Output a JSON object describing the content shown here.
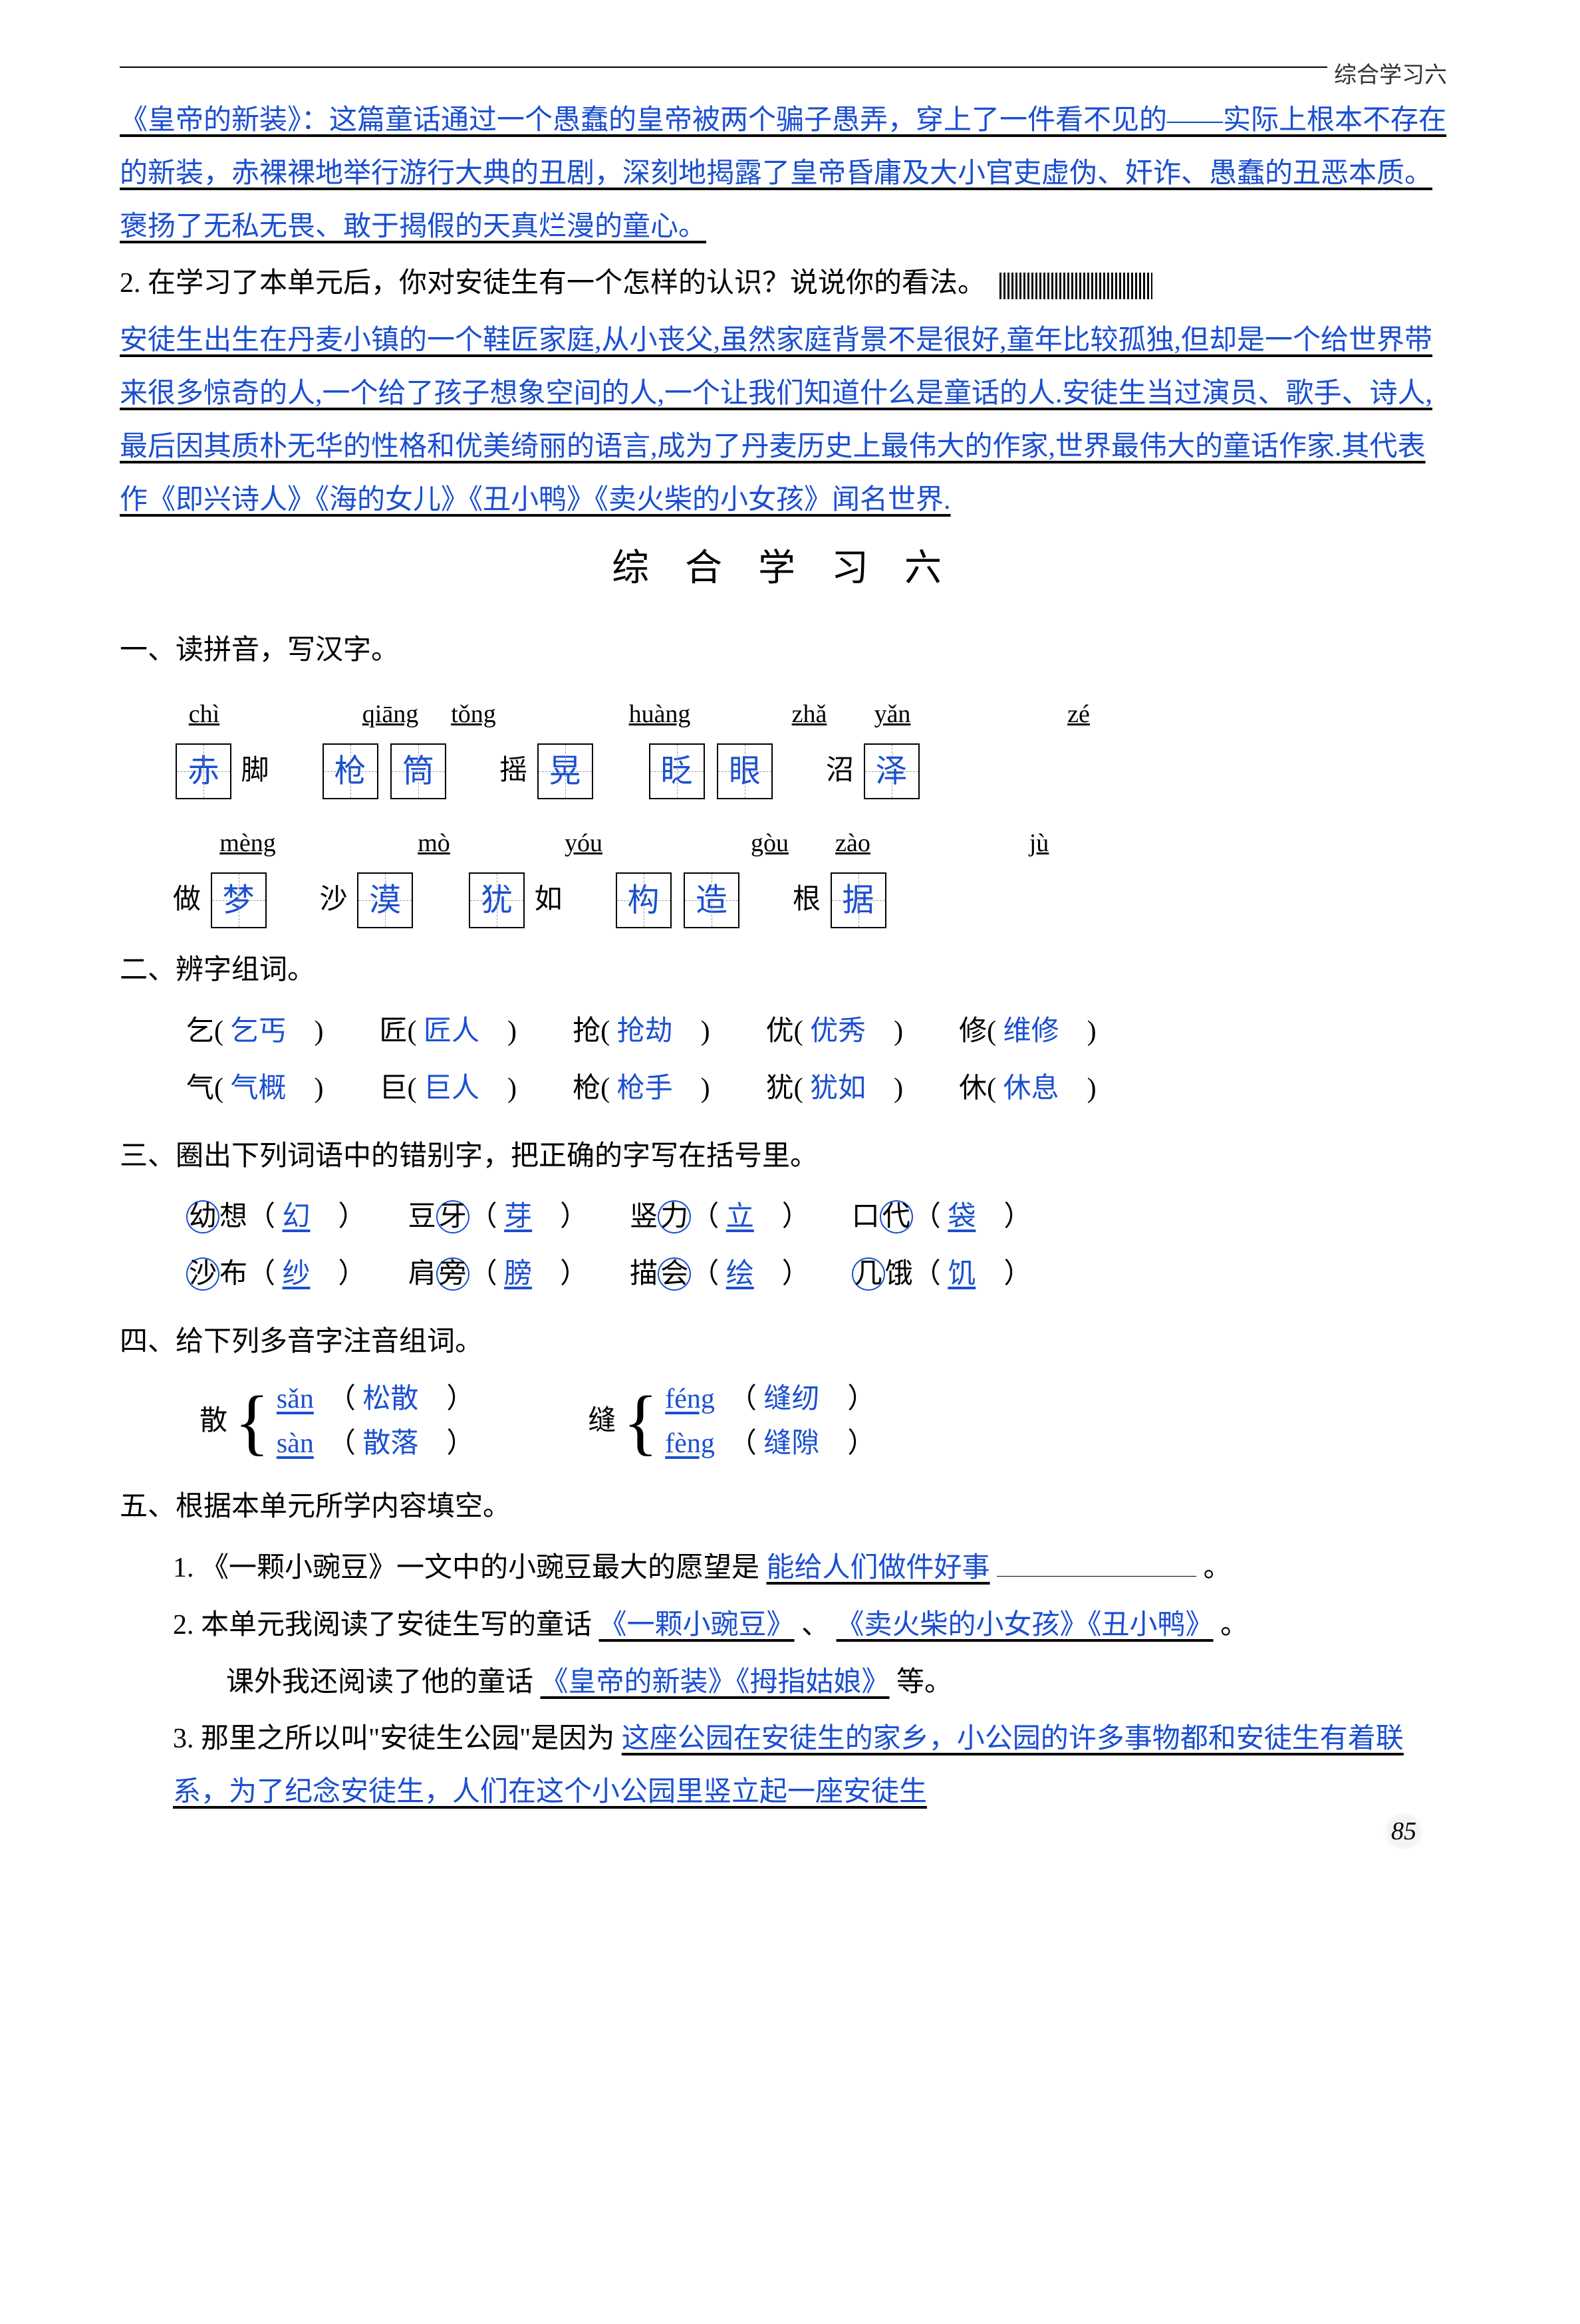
{
  "header": {
    "label": "综合学习六"
  },
  "intro": {
    "answer1": "《皇帝的新装》：这篇童话通过一个愚蠢的皇帝被两个骗子愚弄，穿上了一件看不见的——实际上根本不存在的新装，赤裸裸地举行游行大典的丑剧，深刻地揭露了皇帝昏庸及大小官吏虚伪、奸诈、愚蠢的丑恶本质。褒扬了无私无畏、敢于揭假的天真烂漫的童心。",
    "q2_prefix": "2. 在学习了本单元后，你对安徒生有一个怎样的认识？说说你的看法。",
    "answer2": "安徒生出生在丹麦小镇的一个鞋匠家庭,从小丧父,虽然家庭背景不是很好,童年比较孤独,但却是一个给世界带来很多惊奇的人,一个给了孩子想象空间的人,一个让我们知道什么是童话的人.安徒生当过演员、歌手、诗人,最后因其质朴无华的性格和优美绮丽的语言,成为了丹麦历史上最伟大的作家,世界最伟大的童话作家.其代表作《即兴诗人》《海的女儿》《丑小鸭》《卖火柴的小女孩》闻名世界."
  },
  "title": "综 合 学 习 六",
  "s1": {
    "head": "一、读拼音，写汉字。",
    "r1": {
      "p": [
        "chì",
        "qiāng",
        "tǒng",
        "huàng",
        "zhǎ",
        "yǎn",
        "zé"
      ],
      "c": [
        "赤",
        "枪",
        "筒",
        "晃",
        "眨",
        "眼",
        "泽"
      ],
      "t": [
        "脚",
        "",
        "摇",
        "",
        "",
        "沼"
      ]
    },
    "r2": {
      "p": [
        "mèng",
        "mò",
        "yóu",
        "gòu",
        "zào",
        "jù"
      ],
      "c": [
        "梦",
        "漠",
        "犹",
        "构",
        "造",
        "据"
      ],
      "t": [
        "做",
        "沙",
        "",
        "如",
        "",
        "根",
        ""
      ]
    }
  },
  "s2": {
    "head": "二、辨字组词。",
    "row1": [
      {
        "k": "乞",
        "a": "乞丐"
      },
      {
        "k": "匠",
        "a": "匠人"
      },
      {
        "k": "抢",
        "a": "抢劫"
      },
      {
        "k": "优",
        "a": "优秀"
      },
      {
        "k": "修",
        "a": "维修"
      }
    ],
    "row2": [
      {
        "k": "气",
        "a": "气概"
      },
      {
        "k": "巨",
        "a": "巨人"
      },
      {
        "k": "枪",
        "a": "枪手"
      },
      {
        "k": "犹",
        "a": "犹如"
      },
      {
        "k": "休",
        "a": "休息"
      }
    ]
  },
  "s3": {
    "head": "三、圈出下列词语中的错别字，把正确的字写在括号里。",
    "row1": [
      {
        "w1": "幼",
        "w2": "想",
        "a": "幻"
      },
      {
        "w1": "豆",
        "w2": "牙",
        "circ": 2,
        "a": "芽"
      },
      {
        "w1": "竖",
        "w2": "力",
        "circ": 2,
        "a": "立"
      },
      {
        "w1": "口",
        "w2": "代",
        "circ": 2,
        "a": "袋"
      }
    ],
    "row2": [
      {
        "w1": "沙",
        "w2": "布",
        "a": "纱"
      },
      {
        "w1": "肩",
        "w2": "旁",
        "circ": 2,
        "a": "膀"
      },
      {
        "w1": "描",
        "w2": "会",
        "circ": 2,
        "a": "绘"
      },
      {
        "w1": "几",
        "w2": "饿",
        "circ": 1,
        "a": "饥"
      }
    ]
  },
  "s4": {
    "head": "四、给下列多音字注音组词。",
    "g1": {
      "ch": "散",
      "r1": {
        "p": "sǎn",
        "w": "松散"
      },
      "r2": {
        "p": "sàn",
        "w": "散落"
      }
    },
    "g2": {
      "ch": "缝",
      "r1": {
        "p": "féng",
        "w": "缝纫"
      },
      "r2": {
        "p": "fèng",
        "w": "缝隙"
      }
    }
  },
  "s5": {
    "head": "五、根据本单元所学内容填空。",
    "q1": {
      "pre": "1. 《一颗小豌豆》一文中的小豌豆最大的愿望是",
      "a": "能给人们做件好事",
      "suf": "。"
    },
    "q2": {
      "pre": "2. 本单元我阅读了安徒生写的童话",
      "a1": "《一颗小豌豆》",
      "mid": "、",
      "a2": "《卖火柴的小女孩》《丑小鸭》",
      "suf": "。"
    },
    "q2b": {
      "pre": "课外我还阅读了他的童话",
      "a": "《皇帝的新装》《拇指姑娘》",
      "suf": "等。"
    },
    "q3": {
      "pre": "3. 那里之所以叫\"安徒生公园\"是因为",
      "a": "这座公园在安徒生的家乡，小公园的许多事物都和安徒生有着联系，为了纪念安徒生，人们在这个小公园里竖立起一座安徒生"
    }
  },
  "pagenum": "85"
}
